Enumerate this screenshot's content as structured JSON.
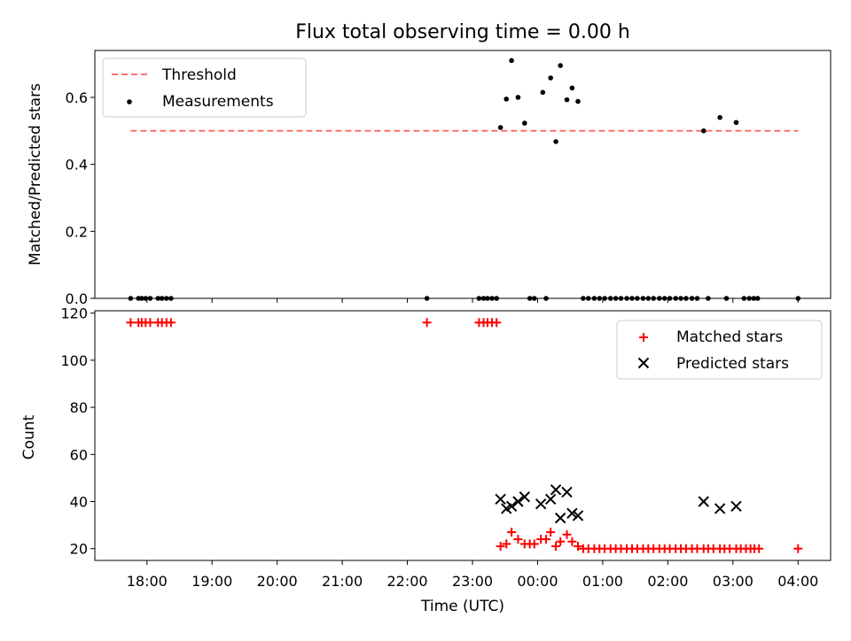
{
  "title": "Flux total observing time = 0.00 h",
  "xlabel": "Time (UTC)",
  "xticks": [
    "18:00",
    "19:00",
    "20:00",
    "21:00",
    "22:00",
    "23:00",
    "00:00",
    "01:00",
    "02:00",
    "03:00",
    "04:00"
  ],
  "colors": {
    "threshold": "#ff7070",
    "measurement": "#000000",
    "matched": "#ff0000",
    "predicted": "#000000"
  },
  "chart_data": [
    {
      "type": "scatter",
      "ylabel": "Matched/Predicted stars",
      "yticks": [
        "0.0",
        "0.2",
        "0.4",
        "0.6"
      ],
      "ylim": [
        0,
        0.74
      ],
      "xlim_hours": [
        17.2,
        28.5
      ],
      "legend": "top-left",
      "threshold": {
        "name": "Threshold",
        "y": 0.5,
        "x_range": [
          17.75,
          28.0
        ]
      },
      "measurements_name": "Measurements",
      "measurements": [
        [
          17.75,
          0
        ],
        [
          17.87,
          0
        ],
        [
          17.92,
          0
        ],
        [
          17.98,
          0
        ],
        [
          18.05,
          0
        ],
        [
          18.17,
          0
        ],
        [
          18.23,
          0
        ],
        [
          18.3,
          0
        ],
        [
          18.37,
          0
        ],
        [
          22.3,
          0
        ],
        [
          23.1,
          0
        ],
        [
          23.17,
          0
        ],
        [
          23.23,
          0
        ],
        [
          23.3,
          0
        ],
        [
          23.37,
          0
        ],
        [
          23.43,
          0.51
        ],
        [
          23.52,
          0.595
        ],
        [
          23.6,
          0.71
        ],
        [
          23.7,
          0.6
        ],
        [
          23.8,
          0.523
        ],
        [
          23.88,
          0
        ],
        [
          23.95,
          0
        ],
        [
          24.08,
          0.615
        ],
        [
          24.13,
          0
        ],
        [
          24.2,
          0.658
        ],
        [
          24.28,
          0.468
        ],
        [
          24.35,
          0.695
        ],
        [
          24.45,
          0.593
        ],
        [
          24.53,
          0.628
        ],
        [
          24.62,
          0.588
        ],
        [
          24.7,
          0
        ],
        [
          24.78,
          0
        ],
        [
          24.87,
          0
        ],
        [
          24.95,
          0
        ],
        [
          25.03,
          0
        ],
        [
          25.12,
          0
        ],
        [
          25.2,
          0
        ],
        [
          25.28,
          0
        ],
        [
          25.37,
          0
        ],
        [
          25.45,
          0
        ],
        [
          25.53,
          0
        ],
        [
          25.62,
          0
        ],
        [
          25.7,
          0
        ],
        [
          25.78,
          0
        ],
        [
          25.87,
          0
        ],
        [
          25.95,
          0
        ],
        [
          26.03,
          0
        ],
        [
          26.12,
          0
        ],
        [
          26.2,
          0
        ],
        [
          26.28,
          0
        ],
        [
          26.37,
          0
        ],
        [
          26.45,
          0
        ],
        [
          26.55,
          0.5
        ],
        [
          26.62,
          0
        ],
        [
          26.8,
          0.54
        ],
        [
          26.9,
          0
        ],
        [
          27.05,
          0.525
        ],
        [
          27.17,
          0
        ],
        [
          27.25,
          0
        ],
        [
          27.32,
          0
        ],
        [
          27.38,
          0
        ],
        [
          28.0,
          0
        ]
      ]
    },
    {
      "type": "scatter",
      "ylabel": "Count",
      "yticks": [
        "20",
        "40",
        "60",
        "80",
        "100",
        "120"
      ],
      "ylim": [
        15,
        121
      ],
      "xlim_hours": [
        17.2,
        28.5
      ],
      "legend": "top-right",
      "series": [
        {
          "name": "Matched stars",
          "marker": "+",
          "points": [
            [
              17.75,
              116
            ],
            [
              17.87,
              116
            ],
            [
              17.92,
              116
            ],
            [
              17.98,
              116
            ],
            [
              18.05,
              116
            ],
            [
              18.17,
              116
            ],
            [
              18.23,
              116
            ],
            [
              18.3,
              116
            ],
            [
              18.37,
              116
            ],
            [
              22.3,
              116
            ],
            [
              23.1,
              116
            ],
            [
              23.17,
              116
            ],
            [
              23.23,
              116
            ],
            [
              23.3,
              116
            ],
            [
              23.37,
              116
            ],
            [
              23.43,
              21
            ],
            [
              23.52,
              22
            ],
            [
              23.6,
              27
            ],
            [
              23.7,
              24
            ],
            [
              23.8,
              22
            ],
            [
              23.88,
              22
            ],
            [
              23.95,
              22
            ],
            [
              24.05,
              24
            ],
            [
              24.13,
              24
            ],
            [
              24.2,
              27
            ],
            [
              24.28,
              21
            ],
            [
              24.35,
              23
            ],
            [
              24.45,
              26
            ],
            [
              24.53,
              23
            ],
            [
              24.62,
              21
            ],
            [
              24.7,
              20
            ],
            [
              24.78,
              20
            ],
            [
              24.87,
              20
            ],
            [
              24.95,
              20
            ],
            [
              25.03,
              20
            ],
            [
              25.12,
              20
            ],
            [
              25.2,
              20
            ],
            [
              25.28,
              20
            ],
            [
              25.37,
              20
            ],
            [
              25.45,
              20
            ],
            [
              25.53,
              20
            ],
            [
              25.62,
              20
            ],
            [
              25.7,
              20
            ],
            [
              25.78,
              20
            ],
            [
              25.87,
              20
            ],
            [
              25.95,
              20
            ],
            [
              26.03,
              20
            ],
            [
              26.12,
              20
            ],
            [
              26.2,
              20
            ],
            [
              26.28,
              20
            ],
            [
              26.37,
              20
            ],
            [
              26.45,
              20
            ],
            [
              26.55,
              20
            ],
            [
              26.62,
              20
            ],
            [
              26.7,
              20
            ],
            [
              26.8,
              20
            ],
            [
              26.87,
              20
            ],
            [
              26.95,
              20
            ],
            [
              27.05,
              20
            ],
            [
              27.12,
              20
            ],
            [
              27.2,
              20
            ],
            [
              27.27,
              20
            ],
            [
              27.33,
              20
            ],
            [
              27.4,
              20
            ],
            [
              28.0,
              20
            ]
          ]
        },
        {
          "name": "Predicted stars",
          "marker": "x",
          "points": [
            [
              23.43,
              41
            ],
            [
              23.52,
              37
            ],
            [
              23.6,
              38
            ],
            [
              23.7,
              40
            ],
            [
              23.8,
              42
            ],
            [
              24.05,
              39
            ],
            [
              24.2,
              41
            ],
            [
              24.28,
              45
            ],
            [
              24.35,
              33
            ],
            [
              24.45,
              44
            ],
            [
              24.53,
              35
            ],
            [
              24.62,
              34
            ],
            [
              26.55,
              40
            ],
            [
              26.8,
              37
            ],
            [
              27.05,
              38
            ]
          ]
        }
      ]
    }
  ]
}
